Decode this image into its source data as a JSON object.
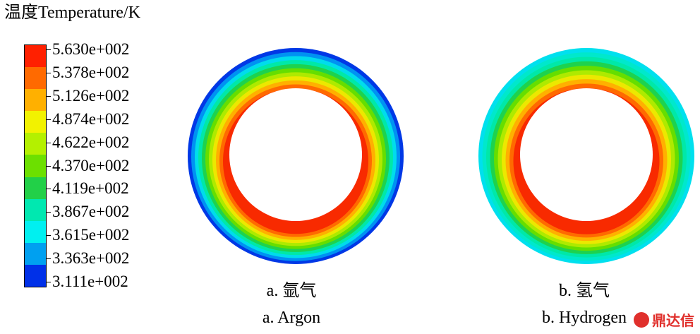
{
  "legend": {
    "title": "温度Temperature/K",
    "labels": [
      "5.630e+002",
      "5.378e+002",
      "5.126e+002",
      "4.874e+002",
      "4.622e+002",
      "4.370e+002",
      "4.119e+002",
      "3.867e+002",
      "3.615e+002",
      "3.363e+002",
      "3.111e+002"
    ],
    "colors": [
      "#ff2000",
      "#ff6a00",
      "#ffb000",
      "#f2f200",
      "#b4f000",
      "#6ce000",
      "#22d048",
      "#00e8b0",
      "#00f0f0",
      "#00a0f0",
      "#0030e8"
    ]
  },
  "panels": [
    {
      "caption_cn": "a. 氩气",
      "caption_en": "a. Argon",
      "ring_colors": [
        "#0038e6",
        "#0092f2",
        "#00dcec",
        "#00e8a8",
        "#1ed24e",
        "#66de00",
        "#aeea00",
        "#ece800",
        "#ffb000",
        "#ff6a00",
        "#f82a00"
      ]
    },
    {
      "caption_cn": "b. 氢气",
      "caption_en": "b. Hydrogen",
      "ring_colors": [
        "#00e0ee",
        "#00e8cc",
        "#00e8a8",
        "#1ed24e",
        "#66de00",
        "#aeea00",
        "#ece800",
        "#ffb000",
        "#ff6a00",
        "#f82a00"
      ]
    }
  ],
  "watermark": "鼎达信"
}
